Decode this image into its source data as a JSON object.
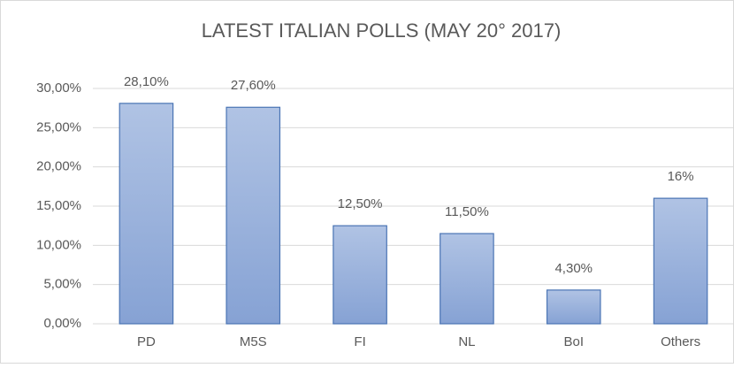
{
  "chart_data": {
    "type": "bar",
    "title": "LATEST ITALIAN POLLS (MAY 20° 2017)",
    "categories": [
      "PD",
      "M5S",
      "FI",
      "NL",
      "BoI",
      "Others"
    ],
    "values": [
      28.1,
      27.6,
      12.5,
      11.5,
      4.3,
      16
    ],
    "value_labels": [
      "28,10%",
      "27,60%",
      "12,50%",
      "11,50%",
      "4,30%",
      "16%"
    ],
    "color": "#8faadc",
    "ylim": [
      0,
      30
    ],
    "yticks": [
      {
        "value": 0,
        "label": "0,00%"
      },
      {
        "value": 5,
        "label": "5,00%"
      },
      {
        "value": 10,
        "label": "10,00%"
      },
      {
        "value": 15,
        "label": "15,00%"
      },
      {
        "value": 20,
        "label": "20,00%"
      },
      {
        "value": 25,
        "label": "25,00%"
      },
      {
        "value": 30,
        "label": "30,00%"
      }
    ],
    "grid": true
  }
}
